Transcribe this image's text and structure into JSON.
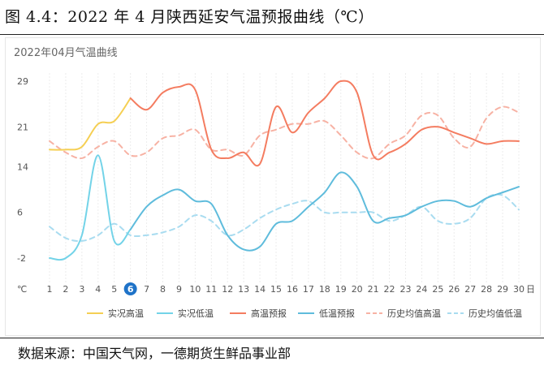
{
  "figure_title": "图 4.4：2022 年 4 月陕西延安气温预报曲线（℃）",
  "source": "数据来源：中国天气网，一德期货生鲜品事业部",
  "chart_data": {
    "type": "line",
    "title": "2022年04月气温曲线",
    "y_unit_label": "℃",
    "x_unit_label": "日",
    "ylim": [
      -2,
      29
    ],
    "yticks": [
      -2,
      6,
      14,
      21,
      29
    ],
    "x": [
      1,
      2,
      3,
      4,
      5,
      6,
      7,
      8,
      9,
      10,
      11,
      12,
      13,
      14,
      15,
      16,
      17,
      18,
      19,
      20,
      21,
      22,
      23,
      24,
      25,
      26,
      27,
      28,
      29,
      30
    ],
    "highlight_day": 6,
    "grid": "vertical-dashed",
    "legend_position": "bottom",
    "series": [
      {
        "name": "实况高温",
        "style": "solid",
        "color": "#f5cf53",
        "points": [
          [
            1,
            17
          ],
          [
            2,
            17
          ],
          [
            3,
            17.5
          ],
          [
            4,
            21.5
          ],
          [
            5,
            22
          ],
          [
            6,
            26
          ]
        ]
      },
      {
        "name": "实况低温",
        "style": "solid",
        "color": "#73d3e8",
        "points": [
          [
            1,
            -2
          ],
          [
            2,
            -2
          ],
          [
            3,
            2
          ],
          [
            4,
            16
          ],
          [
            5,
            1
          ],
          [
            6,
            3
          ]
        ]
      },
      {
        "name": "高温预报",
        "style": "solid",
        "color": "#f47c60",
        "points": [
          [
            6,
            26
          ],
          [
            7,
            24
          ],
          [
            8,
            27
          ],
          [
            9,
            28
          ],
          [
            10,
            27.5
          ],
          [
            11,
            17
          ],
          [
            12,
            15.5
          ],
          [
            13,
            16.5
          ],
          [
            14,
            14.5
          ],
          [
            15,
            24.5
          ],
          [
            16,
            20
          ],
          [
            17,
            23.5
          ],
          [
            18,
            26
          ],
          [
            19,
            29
          ],
          [
            20,
            27
          ],
          [
            21,
            16
          ],
          [
            22,
            16.5
          ],
          [
            23,
            18
          ],
          [
            24,
            20.5
          ],
          [
            25,
            21
          ],
          [
            26,
            20
          ],
          [
            27,
            19
          ],
          [
            28,
            18
          ],
          [
            29,
            18.5
          ],
          [
            30,
            18.5
          ]
        ]
      },
      {
        "name": "低温预报",
        "style": "solid",
        "color": "#5fbcdc",
        "points": [
          [
            6,
            3
          ],
          [
            7,
            7
          ],
          [
            8,
            9
          ],
          [
            9,
            10
          ],
          [
            10,
            8
          ],
          [
            11,
            7.5
          ],
          [
            12,
            2
          ],
          [
            13,
            -0.5
          ],
          [
            14,
            0
          ],
          [
            15,
            4
          ],
          [
            16,
            4.5
          ],
          [
            17,
            7
          ],
          [
            18,
            9.5
          ],
          [
            19,
            13
          ],
          [
            20,
            10.5
          ],
          [
            21,
            4.5
          ],
          [
            22,
            5
          ],
          [
            23,
            5.5
          ],
          [
            24,
            7
          ],
          [
            25,
            8
          ],
          [
            26,
            8
          ],
          [
            27,
            7
          ],
          [
            28,
            8.5
          ],
          [
            29,
            9.5
          ],
          [
            30,
            10.5
          ]
        ]
      },
      {
        "name": "历史均值高温",
        "style": "dashed",
        "color": "#f7b2a4",
        "points": [
          [
            1,
            18.5
          ],
          [
            2,
            16.5
          ],
          [
            3,
            15.5
          ],
          [
            4,
            17.5
          ],
          [
            5,
            18.5
          ],
          [
            6,
            16
          ],
          [
            7,
            16.5
          ],
          [
            8,
            19
          ],
          [
            9,
            19.5
          ],
          [
            10,
            20.5
          ],
          [
            11,
            17
          ],
          [
            12,
            17
          ],
          [
            13,
            16
          ],
          [
            14,
            19.5
          ],
          [
            15,
            20.5
          ],
          [
            16,
            21.5
          ],
          [
            17,
            21.5
          ],
          [
            18,
            22
          ],
          [
            19,
            19.5
          ],
          [
            20,
            16.5
          ],
          [
            21,
            15.5
          ],
          [
            22,
            18
          ],
          [
            23,
            19.5
          ],
          [
            24,
            23
          ],
          [
            25,
            23
          ],
          [
            26,
            19
          ],
          [
            27,
            17.5
          ],
          [
            28,
            22.5
          ],
          [
            29,
            24.5
          ],
          [
            30,
            23.5
          ]
        ]
      },
      {
        "name": "历史均值低温",
        "style": "dashed",
        "color": "#a9dcf0",
        "points": [
          [
            1,
            3.5
          ],
          [
            2,
            1.5
          ],
          [
            3,
            1
          ],
          [
            4,
            2
          ],
          [
            5,
            4
          ],
          [
            6,
            2
          ],
          [
            7,
            2
          ],
          [
            8,
            2.5
          ],
          [
            9,
            3.5
          ],
          [
            10,
            5.5
          ],
          [
            11,
            4.5
          ],
          [
            12,
            2
          ],
          [
            13,
            3
          ],
          [
            14,
            5
          ],
          [
            15,
            6.5
          ],
          [
            16,
            7.5
          ],
          [
            17,
            8
          ],
          [
            18,
            6
          ],
          [
            19,
            6
          ],
          [
            20,
            6
          ],
          [
            21,
            6
          ],
          [
            22,
            4.5
          ],
          [
            23,
            5.5
          ],
          [
            24,
            7
          ],
          [
            25,
            4.5
          ],
          [
            26,
            4
          ],
          [
            27,
            5
          ],
          [
            28,
            8.5
          ],
          [
            29,
            9
          ],
          [
            30,
            6.5
          ]
        ]
      }
    ]
  }
}
